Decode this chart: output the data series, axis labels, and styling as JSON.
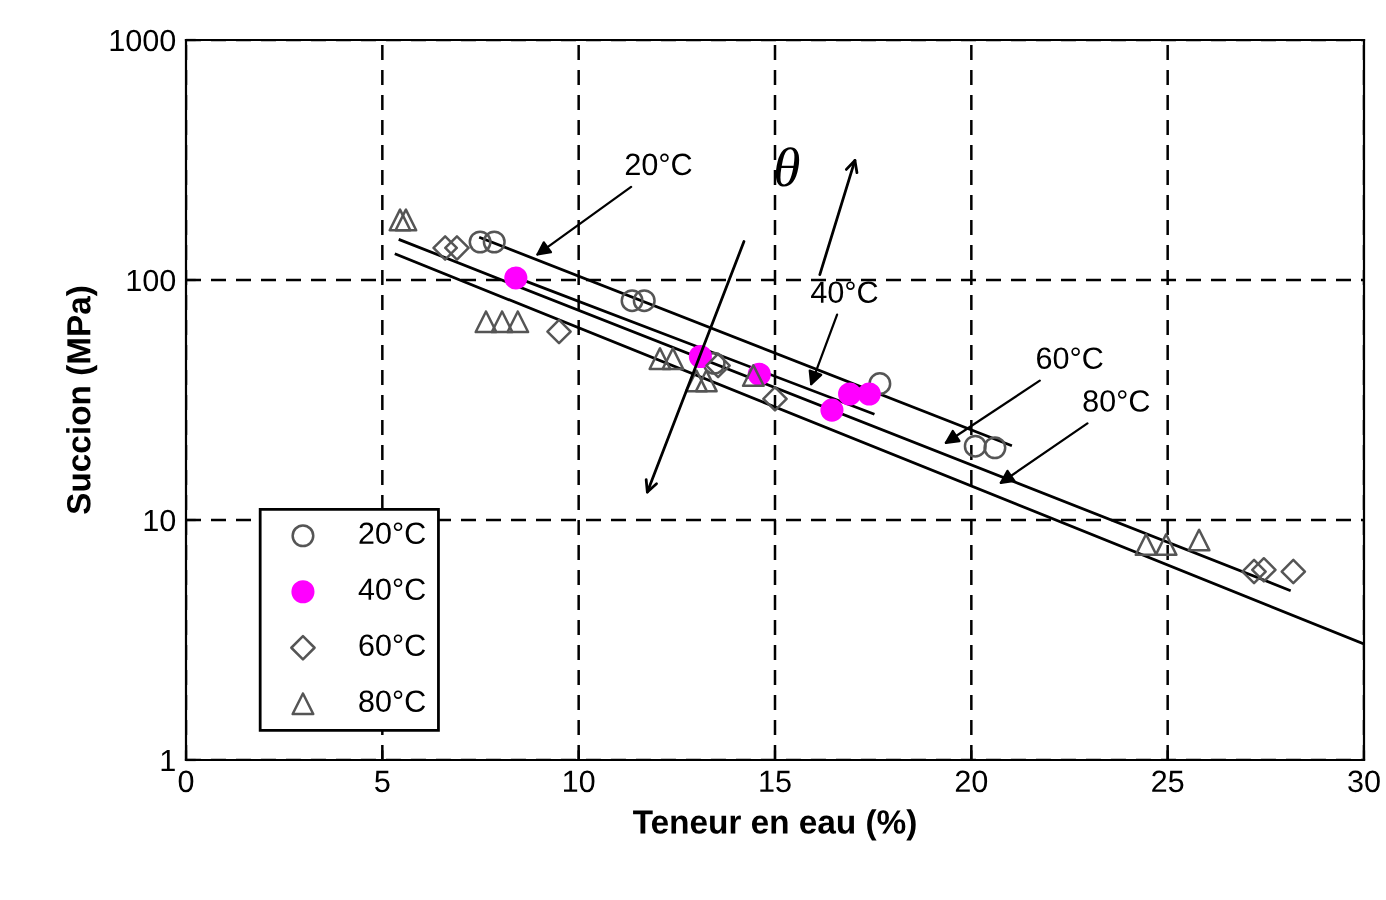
{
  "chart_data": {
    "type": "scatter",
    "xlabel": "Teneur en eau (%)",
    "ylabel": "Succion (MPa)",
    "log": "y",
    "xlim": [
      0,
      30
    ],
    "ylim": [
      1,
      1000
    ],
    "xticks": [
      0,
      5,
      10,
      15,
      20,
      25,
      30
    ],
    "yticks": [
      1,
      10,
      100,
      1000
    ],
    "grid": true,
    "legend": "bottom left",
    "series": [
      {
        "name": "20°C",
        "color": "#555555",
        "marker": "circle",
        "x": [
          7.49,
          7.85,
          11.36,
          11.67,
          13.45,
          17.67,
          20.1,
          20.6
        ],
        "values": [
          144,
          144,
          82,
          82,
          45,
          37,
          20.3,
          20
        ]
      },
      {
        "name": "40°C",
        "color": "#ff00ff",
        "marker": "circle",
        "x": [
          8.4,
          13.1,
          14.6,
          16.45,
          16.9,
          17.4
        ],
        "values": [
          102,
          48,
          40.5,
          28.7,
          33.5,
          33.5
        ]
      },
      {
        "name": "60°C",
        "color": "#555555",
        "marker": "diamond",
        "x": [
          6.6,
          6.9,
          9.5,
          13.55,
          15.0,
          27.2,
          27.45,
          28.2
        ],
        "values": [
          136,
          136,
          61,
          44,
          32,
          6.1,
          6.2,
          6.1
        ]
      },
      {
        "name": "80°C",
        "color": "#555555",
        "marker": "triangle",
        "x": [
          5.45,
          5.6,
          7.64,
          8.05,
          8.45,
          12.07,
          12.4,
          13.0,
          13.25,
          14.45,
          24.45,
          24.96,
          25.8
        ],
        "values": [
          178,
          178,
          67,
          67,
          67,
          47,
          47,
          38,
          38,
          40,
          7.9,
          7.9,
          8.25
        ]
      },
      {
        "type": "line",
        "color": "#000000",
        "x": [
          7.5,
          21
        ],
        "values": [
          150,
          20.5
        ]
      },
      {
        "type": "line",
        "color": "#000000",
        "x": [
          8.3,
          17.5
        ],
        "values": [
          104,
          27.7
        ]
      },
      {
        "type": "line",
        "color": "#000000",
        "x": [
          5.45,
          28.1
        ],
        "values": [
          147,
          5.1
        ]
      },
      {
        "type": "line",
        "color": "#000000",
        "x": [
          5.35,
          30
        ],
        "values": [
          128,
          3.04
        ]
      }
    ],
    "annotations": [
      {
        "text": "20°C",
        "x": 8.9,
        "y": 126
      },
      {
        "text": "40°C",
        "x": 15.9,
        "y": 36
      },
      {
        "text": "60°C",
        "x": 19.3,
        "y": 20.7
      },
      {
        "text": "80°C",
        "x": 20.7,
        "y": 14.1
      },
      "θ"
    ]
  }
}
